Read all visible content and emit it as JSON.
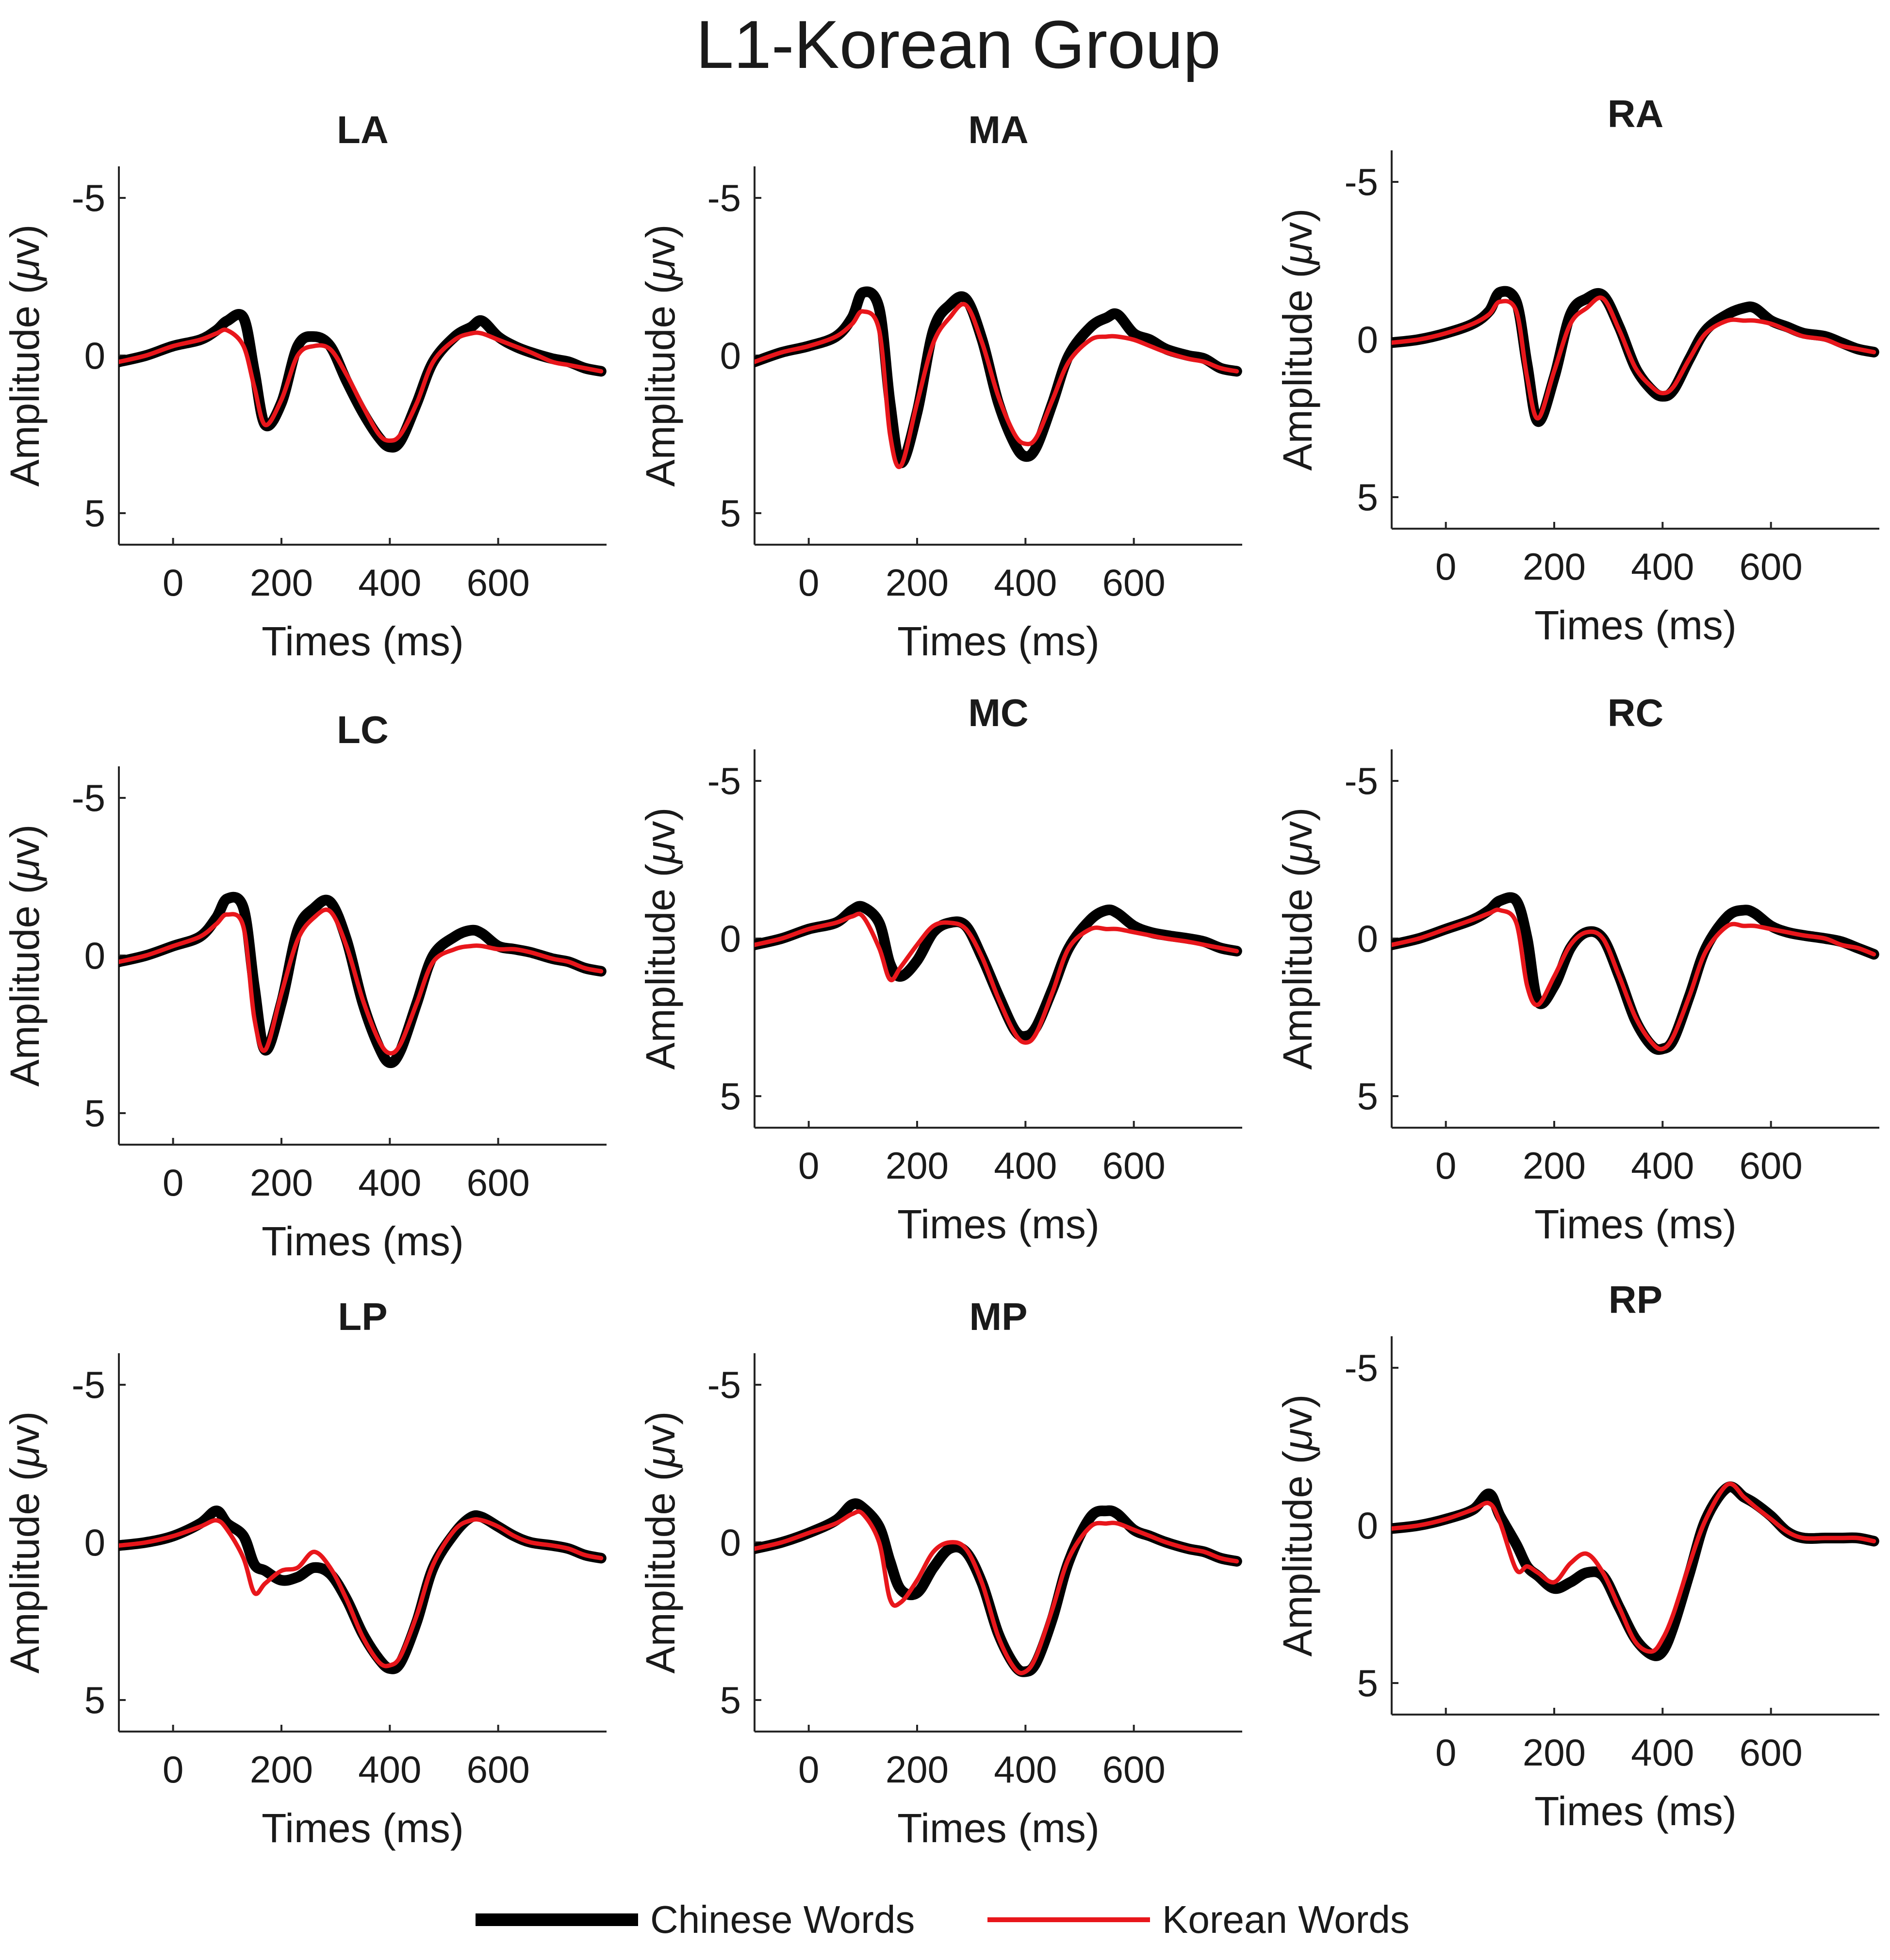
{
  "figure_title": "L1-Korean Group",
  "legend": [
    {
      "label": "Chinese Words",
      "color": "#000000"
    },
    {
      "label": "Korean Words",
      "color": "#e8161b"
    }
  ],
  "chart_data": [
    {
      "type": "line",
      "title": "LA",
      "xlabel": "Times (ms)",
      "ylabel_text": "Amplitude (",
      "ylabel_symbol": "μ",
      "ylabel_unit": "v)",
      "xlim": [
        -100,
        800
      ],
      "ylim": [
        -6,
        6
      ],
      "y_reversed": true,
      "xticks": [
        0,
        200,
        400,
        600
      ],
      "yticks": [
        -5,
        0,
        5
      ],
      "x": [
        -100,
        -50,
        0,
        50,
        80,
        100,
        130,
        150,
        170,
        200,
        230,
        260,
        290,
        320,
        350,
        380,
        400,
        420,
        450,
        480,
        520,
        550,
        570,
        600,
        630,
        660,
        700,
        730,
        760,
        790
      ],
      "series": [
        {
          "name": "Chinese Words",
          "values": [
            0.2,
            0.0,
            -0.3,
            -0.5,
            -0.8,
            -1.1,
            -1.2,
            0.5,
            2.2,
            1.5,
            -0.3,
            -0.6,
            -0.3,
            0.8,
            1.8,
            2.6,
            2.9,
            2.7,
            1.5,
            0.2,
            -0.6,
            -0.9,
            -1.1,
            -0.6,
            -0.3,
            -0.1,
            0.1,
            0.2,
            0.4,
            0.5
          ]
        },
        {
          "name": "Korean Words",
          "values": [
            0.2,
            0.0,
            -0.3,
            -0.5,
            -0.7,
            -0.8,
            -0.3,
            1.0,
            2.2,
            1.4,
            0.0,
            -0.3,
            -0.2,
            0.6,
            1.6,
            2.5,
            2.7,
            2.5,
            1.5,
            0.2,
            -0.5,
            -0.7,
            -0.7,
            -0.5,
            -0.3,
            -0.1,
            0.2,
            0.3,
            0.4,
            0.5
          ]
        }
      ]
    },
    {
      "type": "line",
      "title": "MA",
      "xlabel": "Times (ms)",
      "ylabel_text": "Amplitude (",
      "ylabel_symbol": "μ",
      "ylabel_unit": "v)",
      "xlim": [
        -100,
        800
      ],
      "ylim": [
        -6,
        6
      ],
      "y_reversed": true,
      "xticks": [
        0,
        200,
        400,
        600
      ],
      "yticks": [
        -5,
        0,
        5
      ],
      "x": [
        -100,
        -50,
        0,
        50,
        80,
        100,
        130,
        150,
        170,
        200,
        230,
        260,
        290,
        320,
        350,
        380,
        400,
        420,
        450,
        480,
        520,
        550,
        570,
        600,
        630,
        660,
        700,
        730,
        760,
        790
      ],
      "series": [
        {
          "name": "Chinese Words",
          "values": [
            0.2,
            -0.1,
            -0.3,
            -0.6,
            -1.2,
            -2.0,
            -1.5,
            1.5,
            3.4,
            1.8,
            -0.8,
            -1.6,
            -1.8,
            -0.5,
            1.5,
            2.8,
            3.2,
            2.9,
            1.5,
            0.0,
            -0.9,
            -1.2,
            -1.3,
            -0.7,
            -0.5,
            -0.2,
            0.0,
            0.1,
            0.4,
            0.5
          ]
        },
        {
          "name": "Korean Words",
          "values": [
            0.2,
            -0.1,
            -0.3,
            -0.6,
            -1.0,
            -1.4,
            -0.8,
            2.5,
            3.5,
            1.5,
            -0.4,
            -1.2,
            -1.6,
            -0.4,
            1.3,
            2.5,
            2.8,
            2.6,
            1.4,
            0.2,
            -0.5,
            -0.6,
            -0.6,
            -0.5,
            -0.3,
            -0.1,
            0.1,
            0.2,
            0.4,
            0.5
          ]
        }
      ]
    },
    {
      "type": "line",
      "title": "RA",
      "xlabel": "Times (ms)",
      "ylabel_text": "Amplitude (",
      "ylabel_symbol": "μ",
      "ylabel_unit": "v)",
      "xlim": [
        -100,
        800
      ],
      "ylim": [
        -6,
        6
      ],
      "y_reversed": true,
      "xticks": [
        0,
        200,
        400,
        600
      ],
      "yticks": [
        -5,
        0,
        5
      ],
      "x": [
        -100,
        -50,
        0,
        50,
        80,
        100,
        130,
        150,
        170,
        200,
        230,
        260,
        290,
        320,
        350,
        380,
        400,
        420,
        450,
        480,
        520,
        550,
        570,
        600,
        630,
        660,
        700,
        730,
        760,
        790
      ],
      "series": [
        {
          "name": "Chinese Words",
          "values": [
            0.1,
            0.0,
            -0.2,
            -0.5,
            -0.9,
            -1.5,
            -1.2,
            0.8,
            2.6,
            1.2,
            -0.8,
            -1.3,
            -1.4,
            -0.4,
            0.9,
            1.6,
            1.8,
            1.6,
            0.6,
            -0.3,
            -0.8,
            -1.0,
            -1.0,
            -0.6,
            -0.4,
            -0.2,
            -0.1,
            0.1,
            0.3,
            0.4
          ]
        },
        {
          "name": "Korean Words",
          "values": [
            0.1,
            0.0,
            -0.2,
            -0.5,
            -0.8,
            -1.2,
            -0.9,
            1.2,
            2.5,
            1.0,
            -0.5,
            -1.0,
            -1.3,
            -0.3,
            0.9,
            1.5,
            1.7,
            1.5,
            0.6,
            -0.2,
            -0.6,
            -0.6,
            -0.6,
            -0.5,
            -0.3,
            -0.1,
            0.0,
            0.2,
            0.3,
            0.4
          ]
        }
      ]
    },
    {
      "type": "line",
      "title": "LC",
      "xlabel": "Times (ms)",
      "ylabel_text": "Amplitude (",
      "ylabel_symbol": "μ",
      "ylabel_unit": "v)",
      "xlim": [
        -100,
        800
      ],
      "ylim": [
        -6,
        6
      ],
      "y_reversed": true,
      "xticks": [
        0,
        200,
        400,
        600
      ],
      "yticks": [
        -5,
        0,
        5
      ],
      "x": [
        -100,
        -50,
        0,
        50,
        80,
        100,
        130,
        150,
        170,
        200,
        230,
        260,
        290,
        320,
        350,
        380,
        400,
        420,
        450,
        480,
        520,
        550,
        570,
        600,
        630,
        660,
        700,
        730,
        760,
        790
      ],
      "series": [
        {
          "name": "Chinese Words",
          "values": [
            0.2,
            0.0,
            -0.3,
            -0.6,
            -1.2,
            -1.8,
            -1.5,
            1.0,
            3.0,
            1.5,
            -0.8,
            -1.5,
            -1.7,
            -0.5,
            1.5,
            2.9,
            3.4,
            3.0,
            1.5,
            0.0,
            -0.6,
            -0.8,
            -0.7,
            -0.3,
            -0.2,
            -0.1,
            0.1,
            0.2,
            0.4,
            0.5
          ]
        },
        {
          "name": "Korean Words",
          "values": [
            0.2,
            0.0,
            -0.3,
            -0.6,
            -1.0,
            -1.3,
            -0.9,
            2.0,
            3.0,
            1.2,
            -0.5,
            -1.2,
            -1.4,
            -0.3,
            1.4,
            2.7,
            3.1,
            2.8,
            1.5,
            0.2,
            -0.2,
            -0.3,
            -0.3,
            -0.2,
            -0.2,
            -0.1,
            0.1,
            0.2,
            0.4,
            0.5
          ]
        }
      ]
    },
    {
      "type": "line",
      "title": "MC",
      "xlabel": "Times (ms)",
      "ylabel_text": "Amplitude (",
      "ylabel_symbol": "μ",
      "ylabel_unit": "v)",
      "xlim": [
        -100,
        800
      ],
      "ylim": [
        -6,
        6
      ],
      "y_reversed": true,
      "xticks": [
        0,
        200,
        400,
        600
      ],
      "yticks": [
        -5,
        0,
        5
      ],
      "x": [
        -100,
        -50,
        0,
        50,
        80,
        100,
        130,
        150,
        170,
        200,
        230,
        260,
        290,
        320,
        350,
        380,
        400,
        420,
        450,
        480,
        520,
        550,
        570,
        600,
        630,
        660,
        700,
        730,
        760,
        790
      ],
      "series": [
        {
          "name": "Chinese Words",
          "values": [
            0.2,
            0.0,
            -0.3,
            -0.5,
            -0.9,
            -1.0,
            -0.5,
            0.8,
            1.2,
            0.7,
            -0.2,
            -0.5,
            -0.4,
            0.6,
            1.8,
            2.9,
            3.1,
            2.8,
            1.6,
            0.3,
            -0.6,
            -0.9,
            -0.8,
            -0.4,
            -0.2,
            -0.1,
            0.0,
            0.1,
            0.3,
            0.4
          ]
        },
        {
          "name": "Korean Words",
          "values": [
            0.2,
            0.0,
            -0.3,
            -0.5,
            -0.7,
            -0.7,
            0.3,
            1.3,
            0.9,
            0.2,
            -0.4,
            -0.5,
            -0.3,
            0.6,
            1.9,
            3.0,
            3.3,
            3.0,
            1.7,
            0.3,
            -0.3,
            -0.3,
            -0.3,
            -0.2,
            -0.1,
            0.0,
            0.1,
            0.2,
            0.3,
            0.4
          ]
        }
      ]
    },
    {
      "type": "line",
      "title": "RC",
      "xlabel": "Times (ms)",
      "ylabel_text": "Amplitude (",
      "ylabel_symbol": "μ",
      "ylabel_unit": "v)",
      "xlim": [
        -100,
        800
      ],
      "ylim": [
        -6,
        6
      ],
      "y_reversed": true,
      "xticks": [
        0,
        200,
        400,
        600
      ],
      "yticks": [
        -5,
        0,
        5
      ],
      "x": [
        -100,
        -50,
        0,
        50,
        80,
        100,
        130,
        150,
        170,
        200,
        230,
        260,
        290,
        320,
        350,
        380,
        400,
        420,
        450,
        480,
        520,
        550,
        570,
        600,
        630,
        660,
        700,
        730,
        760,
        790
      ],
      "series": [
        {
          "name": "Chinese Words",
          "values": [
            0.2,
            0.0,
            -0.3,
            -0.6,
            -0.9,
            -1.2,
            -1.2,
            0.0,
            2.0,
            1.5,
            0.3,
            -0.2,
            0.0,
            1.2,
            2.6,
            3.4,
            3.5,
            3.2,
            1.8,
            0.3,
            -0.7,
            -0.9,
            -0.8,
            -0.4,
            -0.2,
            -0.1,
            0.0,
            0.1,
            0.3,
            0.5
          ]
        },
        {
          "name": "Korean Words",
          "values": [
            0.2,
            0.0,
            -0.3,
            -0.6,
            -0.8,
            -0.9,
            -0.5,
            1.5,
            2.1,
            1.2,
            0.2,
            -0.2,
            0.0,
            1.2,
            2.5,
            3.3,
            3.5,
            3.1,
            1.8,
            0.4,
            -0.4,
            -0.4,
            -0.4,
            -0.3,
            -0.2,
            -0.1,
            0.0,
            0.2,
            0.3,
            0.5
          ]
        }
      ]
    },
    {
      "type": "line",
      "title": "LP",
      "xlabel": "Times (ms)",
      "ylabel_text": "Amplitude (",
      "ylabel_symbol": "μ",
      "ylabel_unit": "v)",
      "xlim": [
        -100,
        800
      ],
      "ylim": [
        -6,
        6
      ],
      "y_reversed": true,
      "xticks": [
        0,
        200,
        400,
        600
      ],
      "yticks": [
        -5,
        0,
        5
      ],
      "x": [
        -100,
        -50,
        0,
        50,
        80,
        100,
        130,
        150,
        170,
        200,
        230,
        260,
        290,
        320,
        350,
        380,
        400,
        420,
        450,
        480,
        520,
        550,
        570,
        600,
        630,
        660,
        700,
        730,
        760,
        790
      ],
      "series": [
        {
          "name": "Chinese Words",
          "values": [
            0.1,
            0.0,
            -0.2,
            -0.6,
            -1.0,
            -0.6,
            -0.2,
            0.7,
            0.9,
            1.2,
            1.1,
            0.8,
            1.0,
            1.8,
            2.9,
            3.7,
            4.0,
            3.8,
            2.5,
            0.8,
            -0.3,
            -0.8,
            -0.8,
            -0.5,
            -0.2,
            0.0,
            0.1,
            0.2,
            0.4,
            0.5
          ]
        },
        {
          "name": "Korean Words",
          "values": [
            0.1,
            0.0,
            -0.2,
            -0.5,
            -0.7,
            -0.4,
            0.5,
            1.6,
            1.3,
            0.9,
            0.8,
            0.3,
            0.8,
            1.8,
            3.0,
            3.8,
            3.9,
            3.6,
            2.3,
            0.7,
            -0.4,
            -0.7,
            -0.7,
            -0.5,
            -0.2,
            0.0,
            0.1,
            0.2,
            0.4,
            0.5
          ]
        }
      ]
    },
    {
      "type": "line",
      "title": "MP",
      "xlabel": "Times (ms)",
      "ylabel_text": "Amplitude (",
      "ylabel_symbol": "μ",
      "ylabel_unit": "v)",
      "xlim": [
        -100,
        800
      ],
      "ylim": [
        -6,
        6
      ],
      "y_reversed": true,
      "xticks": [
        0,
        200,
        400,
        600
      ],
      "yticks": [
        -5,
        0,
        5
      ],
      "x": [
        -100,
        -50,
        0,
        50,
        80,
        100,
        130,
        150,
        170,
        200,
        230,
        260,
        290,
        320,
        350,
        380,
        400,
        420,
        450,
        480,
        520,
        550,
        570,
        600,
        630,
        660,
        700,
        730,
        760,
        790
      ],
      "series": [
        {
          "name": "Chinese Words",
          "values": [
            0.2,
            0.0,
            -0.3,
            -0.7,
            -1.2,
            -1.1,
            -0.5,
            0.6,
            1.5,
            1.6,
            0.8,
            0.2,
            0.3,
            1.3,
            2.9,
            3.9,
            4.1,
            3.8,
            2.4,
            0.6,
            -0.8,
            -1.0,
            -0.9,
            -0.4,
            -0.2,
            0.0,
            0.2,
            0.3,
            0.5,
            0.6
          ]
        },
        {
          "name": "Korean Words",
          "values": [
            0.2,
            0.0,
            -0.3,
            -0.6,
            -0.9,
            -0.9,
            0.0,
            1.8,
            1.9,
            1.2,
            0.3,
            0.0,
            0.2,
            1.3,
            3.0,
            4.0,
            4.1,
            3.6,
            2.1,
            0.5,
            -0.5,
            -0.6,
            -0.6,
            -0.4,
            -0.2,
            0.0,
            0.2,
            0.3,
            0.5,
            0.6
          ]
        }
      ]
    },
    {
      "type": "line",
      "title": "RP",
      "xlabel": "Times (ms)",
      "ylabel_text": "Amplitude (",
      "ylabel_symbol": "μ",
      "ylabel_unit": "v)",
      "xlim": [
        -100,
        800
      ],
      "ylim": [
        -6,
        6
      ],
      "y_reversed": true,
      "xticks": [
        0,
        200,
        400,
        600
      ],
      "yticks": [
        -5,
        0,
        5
      ],
      "x": [
        -100,
        -50,
        0,
        50,
        80,
        100,
        130,
        150,
        170,
        200,
        230,
        260,
        290,
        320,
        350,
        380,
        400,
        420,
        450,
        480,
        520,
        550,
        570,
        600,
        630,
        660,
        700,
        730,
        760,
        790
      ],
      "series": [
        {
          "name": "Chinese Words",
          "values": [
            0.1,
            0.0,
            -0.2,
            -0.5,
            -1.0,
            -0.3,
            0.6,
            1.3,
            1.6,
            2.0,
            1.8,
            1.5,
            1.6,
            2.6,
            3.6,
            4.1,
            4.0,
            3.2,
            1.5,
            -0.2,
            -1.2,
            -0.9,
            -0.7,
            -0.3,
            0.2,
            0.4,
            0.4,
            0.4,
            0.4,
            0.5
          ]
        },
        {
          "name": "Korean Words",
          "values": [
            0.1,
            0.0,
            -0.2,
            -0.5,
            -0.7,
            -0.1,
            1.4,
            1.3,
            1.5,
            1.8,
            1.2,
            0.9,
            1.5,
            2.6,
            3.7,
            4.0,
            3.6,
            2.8,
            1.2,
            -0.2,
            -1.3,
            -0.9,
            -0.6,
            -0.2,
            0.2,
            0.4,
            0.4,
            0.4,
            0.4,
            0.5
          ]
        }
      ]
    }
  ]
}
